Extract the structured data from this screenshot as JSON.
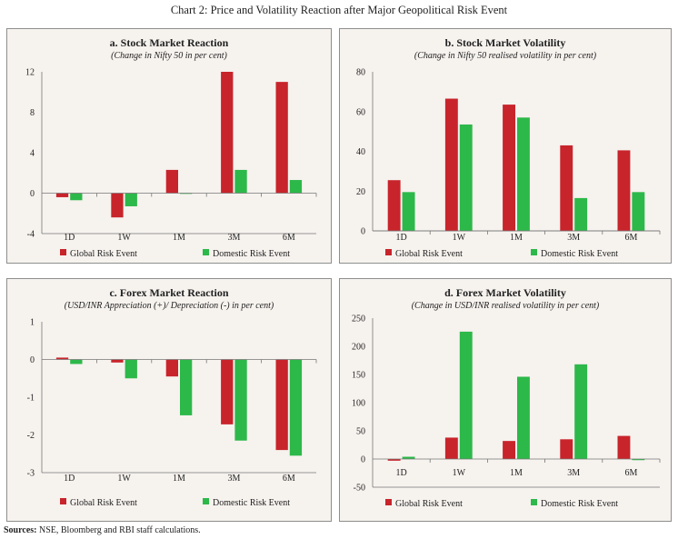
{
  "title": "Chart 2: Price and Volatility Reaction after Major Geopolitical Risk Event",
  "sources_label": "Sources:",
  "sources_text": " NSE, Bloomberg and RBI staff calculations.",
  "colors": {
    "global": "#c8242b",
    "domestic": "#2db84a",
    "panel_bg": "#f6f2ee",
    "border": "#8e8e8e"
  },
  "chart_data": [
    {
      "id": "a",
      "type": "bar",
      "title": "a. Stock Market Reaction",
      "subtitle": "(Change in Nifty 50 in per cent)",
      "categories": [
        "1D",
        "1W",
        "1M",
        "3M",
        "6M"
      ],
      "series": [
        {
          "name": "Global Risk Event",
          "values": [
            -0.4,
            -2.4,
            2.3,
            12.0,
            11.0
          ]
        },
        {
          "name": "Domestic Risk Event",
          "values": [
            -0.7,
            -1.3,
            0.0,
            2.3,
            1.3
          ]
        }
      ],
      "yticks": [
        -4,
        0,
        4,
        8,
        12
      ],
      "ylim": [
        -4,
        12
      ],
      "xlabel": "",
      "ylabel": "",
      "legend": "bottom"
    },
    {
      "id": "b",
      "type": "bar",
      "title": "b. Stock Market Volatility",
      "subtitle": "(Change in Nifty 50 realised volatility in per cent)",
      "categories": [
        "1D",
        "1W",
        "1M",
        "3M",
        "6M"
      ],
      "series": [
        {
          "name": "Global Risk Event",
          "values": [
            25.5,
            66.5,
            63.5,
            43.0,
            40.5
          ]
        },
        {
          "name": "Domestic Risk Event",
          "values": [
            19.5,
            53.5,
            57.0,
            16.5,
            19.5
          ]
        }
      ],
      "yticks": [
        0,
        20,
        40,
        60,
        80
      ],
      "ylim": [
        0,
        80
      ],
      "xlabel": "",
      "ylabel": "",
      "legend": "bottom"
    },
    {
      "id": "c",
      "type": "bar",
      "title": "c. Forex Market Reaction",
      "subtitle": "(USD/INR Appreciation (+)/ Depreciation (-) in per cent)",
      "categories": [
        "1D",
        "1W",
        "1M",
        "3M",
        "6M"
      ],
      "series": [
        {
          "name": "Global Risk Event",
          "values": [
            0.05,
            -0.08,
            -0.45,
            -1.72,
            -2.4
          ]
        },
        {
          "name": "Domestic Risk Event",
          "values": [
            -0.12,
            -0.5,
            -1.48,
            -2.15,
            -2.55
          ]
        }
      ],
      "yticks": [
        -3,
        -2,
        -1,
        0,
        1
      ],
      "ylim": [
        -3,
        1
      ],
      "xlabel": "",
      "ylabel": "",
      "legend": "bottom"
    },
    {
      "id": "d",
      "type": "bar",
      "title": "d. Forex Market Volatility",
      "subtitle": "(Change in USD/INR realised volatility in per cent)",
      "categories": [
        "1D",
        "1W",
        "1M",
        "3M",
        "6M"
      ],
      "series": [
        {
          "name": "Global Risk Event",
          "values": [
            -3,
            38,
            32,
            35,
            41
          ]
        },
        {
          "name": "Domestic Risk Event",
          "values": [
            4,
            226,
            146,
            168,
            -2
          ]
        }
      ],
      "yticks": [
        -50,
        0,
        50,
        100,
        150,
        200,
        250
      ],
      "ylim": [
        -50,
        250
      ],
      "xlabel": "",
      "ylabel": "",
      "legend": "bottom"
    }
  ]
}
